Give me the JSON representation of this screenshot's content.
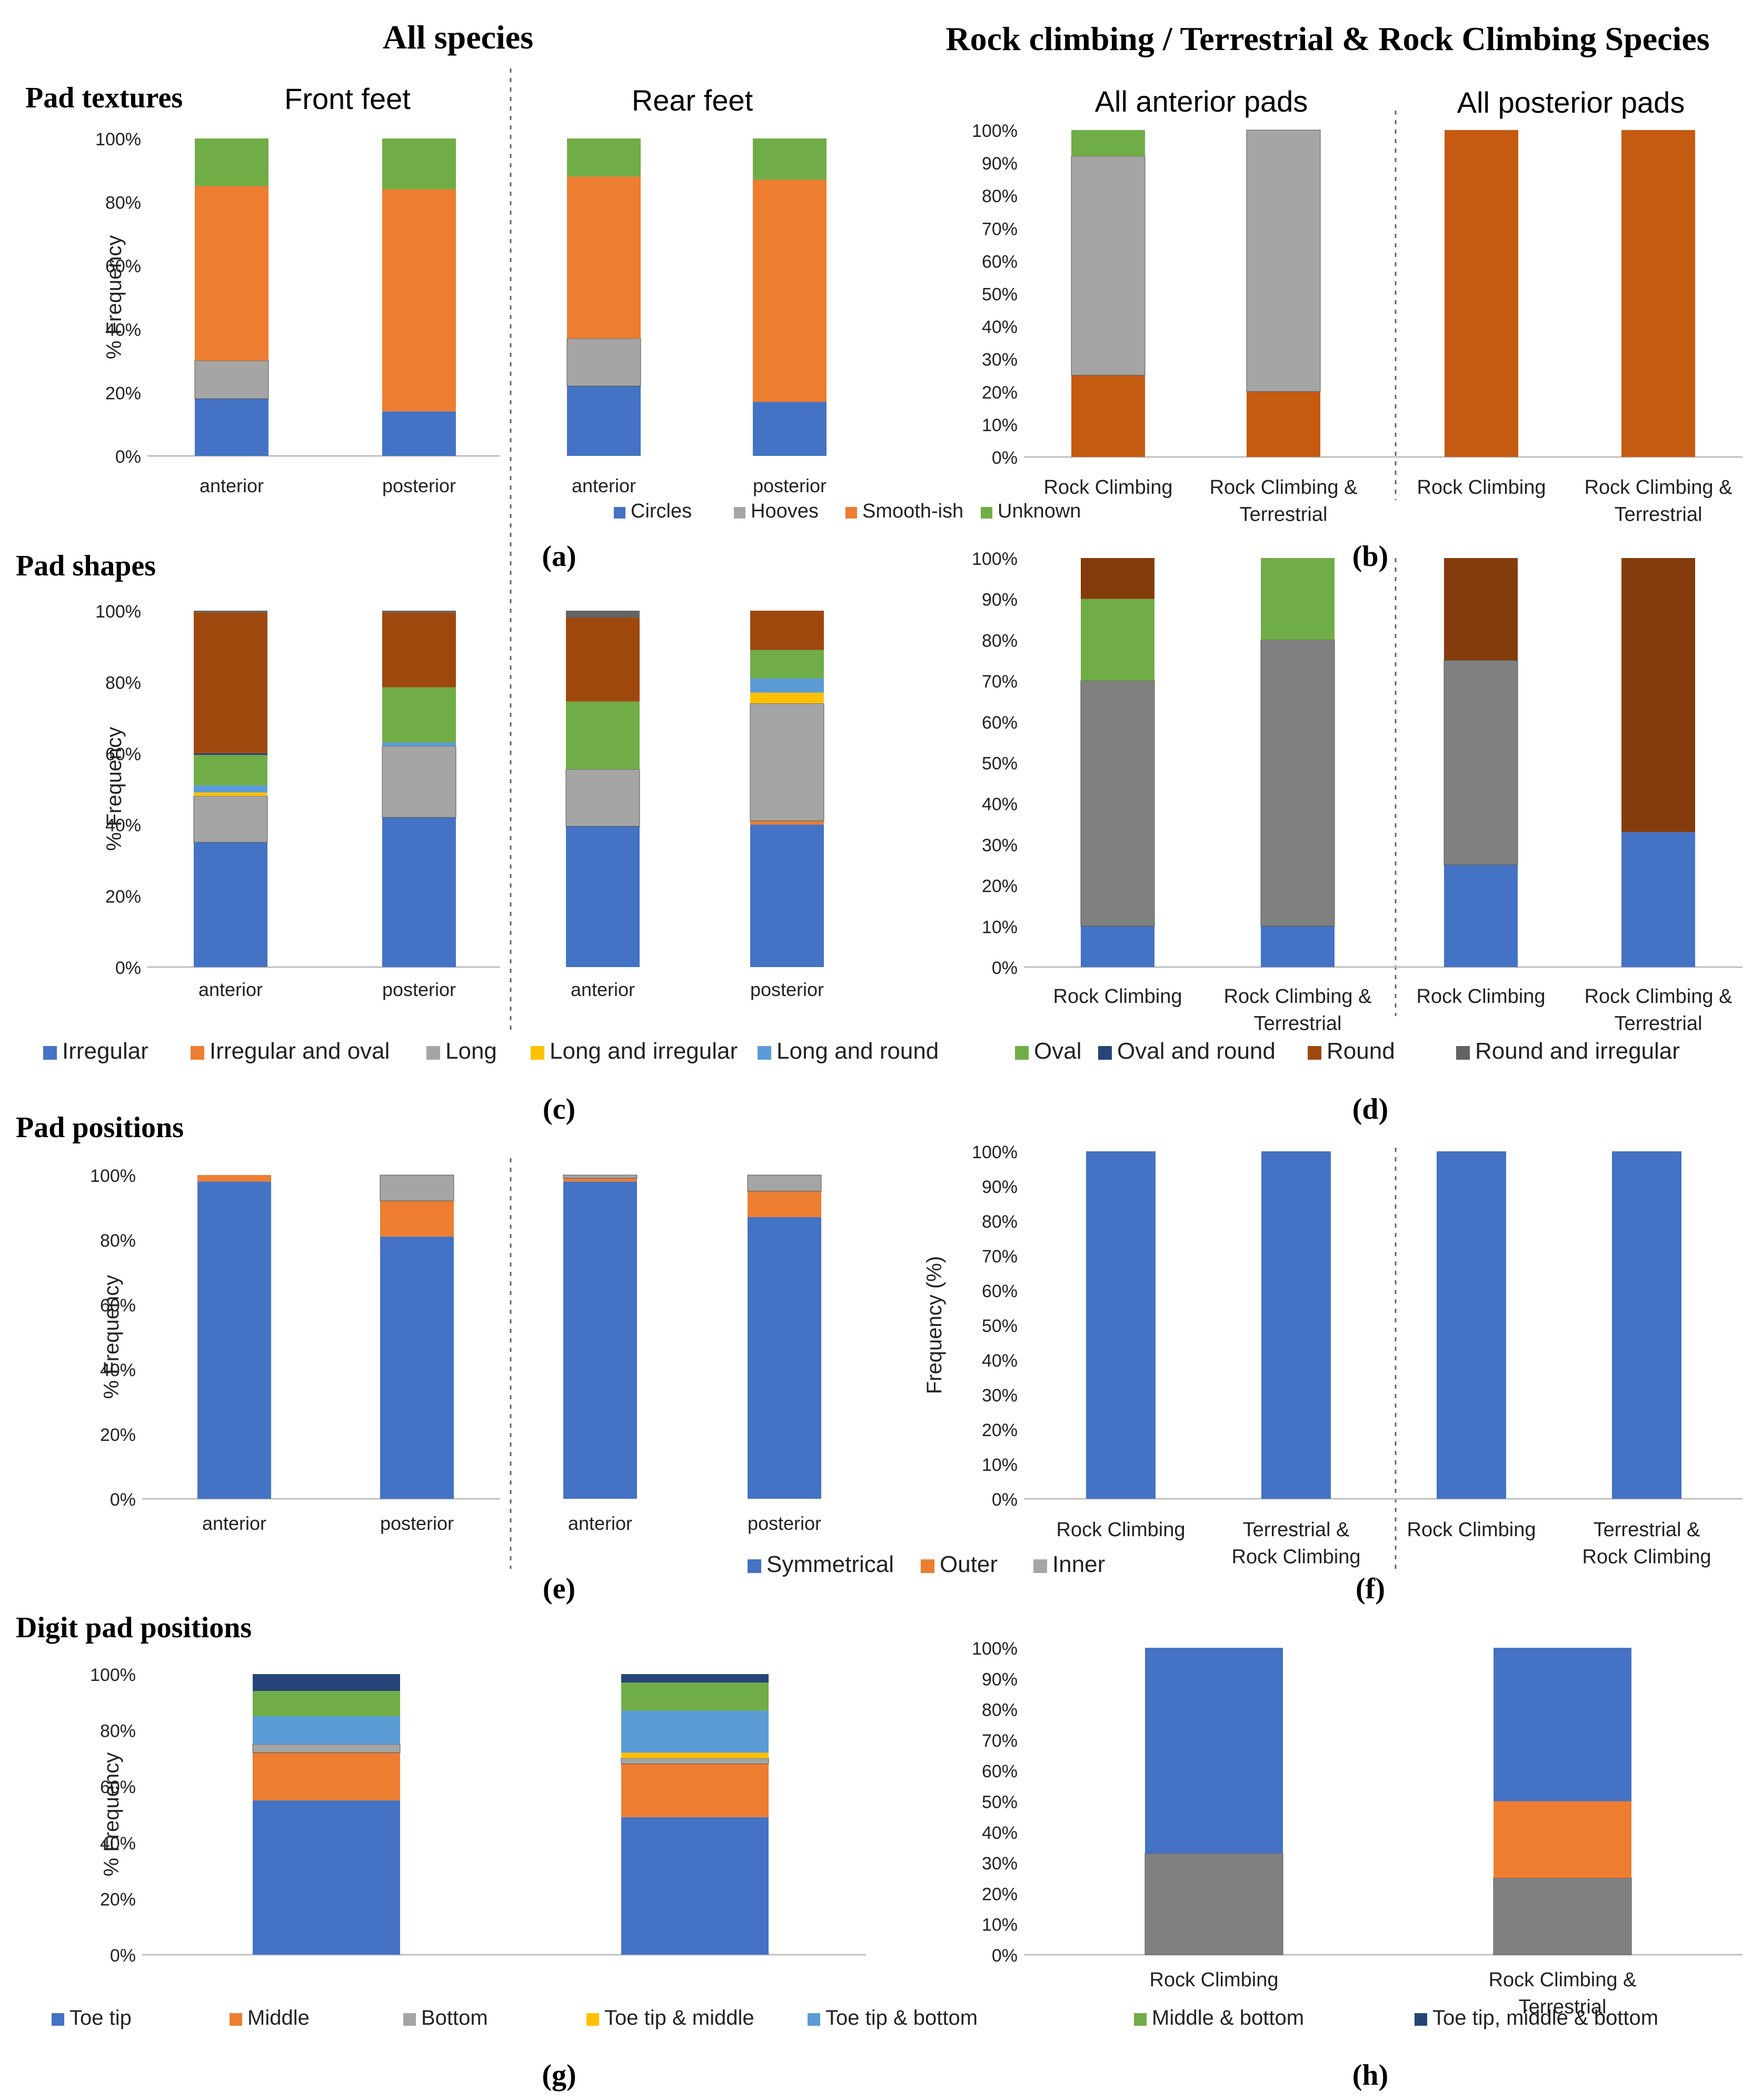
{
  "headings": {
    "all_species": "All species",
    "rock_species": "Rock climbing / Terrestrial & Rock Climbing Species",
    "row_textures": "Pad textures",
    "row_shapes": "Pad shapes",
    "row_positions": "Pad positions",
    "row_digit": "Digit pad positions",
    "front_feet": "Front feet",
    "rear_feet": "Rear feet",
    "anterior_pads": "All anterior pads",
    "posterior_pads": "All posterior pads"
  },
  "panel_labels": {
    "a": "(a)",
    "b": "(b)",
    "c": "(c)",
    "d": "(d)",
    "e": "(e)",
    "f": "(f)",
    "g": "(g)",
    "h": "(h)"
  },
  "legends": {
    "textures": [
      {
        "name": "Circles",
        "color": "#4472C4"
      },
      {
        "name": "Hooves",
        "color": "#A5A5A5"
      },
      {
        "name": "Smooth-ish",
        "color": "#ED7D31"
      },
      {
        "name": "Unknown",
        "color": "#70AD47"
      }
    ],
    "shapes": [
      {
        "name": "Irregular",
        "color": "#4472C4"
      },
      {
        "name": "Irregular and oval",
        "color": "#ED7D31"
      },
      {
        "name": "Long",
        "color": "#A5A5A5"
      },
      {
        "name": "Long and irregular",
        "color": "#FFC000"
      },
      {
        "name": "Long and round",
        "color": "#5B9BD5"
      },
      {
        "name": "Oval",
        "color": "#70AD47"
      },
      {
        "name": "Oval and round",
        "color": "#264478"
      },
      {
        "name": "Round",
        "color": "#9E480E"
      },
      {
        "name": "Round and irregular",
        "color": "#636363"
      }
    ],
    "positions": [
      {
        "name": "Symmetrical",
        "color": "#4472C4"
      },
      {
        "name": "Outer",
        "color": "#ED7D31"
      },
      {
        "name": "Inner",
        "color": "#A5A5A5"
      }
    ],
    "digit": [
      {
        "name": "Toe tip",
        "color": "#4472C4"
      },
      {
        "name": "Middle",
        "color": "#ED7D31"
      },
      {
        "name": "Bottom",
        "color": "#A5A5A5"
      },
      {
        "name": "Toe tip & middle",
        "color": "#FFC000"
      },
      {
        "name": "Toe tip & bottom",
        "color": "#5B9BD5"
      },
      {
        "name": "Middle & bottom",
        "color": "#70AD47"
      },
      {
        "name": "Toe tip, middle & bottom",
        "color": "#264478"
      }
    ]
  },
  "chart_data": [
    {
      "id": "a",
      "type": "bar",
      "stacked": true,
      "title": "Pad textures",
      "ylabel": "% Frequency",
      "ylim": [
        0,
        100
      ],
      "yticks": [
        "0%",
        "20%",
        "40%",
        "60%",
        "80%",
        "100%"
      ],
      "categories": [
        "anterior",
        "posterior",
        "anterior",
        "posterior"
      ],
      "series": [
        {
          "name": "Circles",
          "color": "#4472C4",
          "values": [
            18,
            14,
            22,
            17
          ]
        },
        {
          "name": "Hooves",
          "color": "#A5A5A5",
          "values": [
            12,
            0,
            15,
            0
          ]
        },
        {
          "name": "Smooth-ish",
          "color": "#ED7D31",
          "values": [
            55,
            70,
            51,
            70
          ]
        },
        {
          "name": "Unknown",
          "color": "#70AD47",
          "values": [
            15,
            16,
            12,
            13
          ]
        }
      ]
    },
    {
      "id": "b",
      "type": "bar",
      "stacked": true,
      "ylim": [
        0,
        100
      ],
      "yticks": [
        "0%",
        "10%",
        "20%",
        "30%",
        "40%",
        "50%",
        "60%",
        "70%",
        "80%",
        "90%",
        "100%"
      ],
      "categories": [
        "Rock Climbing",
        "Rock Climbing & Terrestrial",
        "Rock Climbing",
        "Rock Climbing & Terrestrial"
      ],
      "series": [
        {
          "name": "Smooth-ish",
          "color": "#C55A11",
          "values": [
            25,
            20,
            100,
            100
          ]
        },
        {
          "name": "Hooves",
          "color": "#A5A5A5",
          "values": [
            67,
            80,
            0,
            0
          ]
        },
        {
          "name": "Unknown",
          "color": "#70AD47",
          "values": [
            8,
            0,
            0,
            0
          ]
        }
      ]
    },
    {
      "id": "c",
      "type": "bar",
      "stacked": true,
      "title": "Pad shapes",
      "ylabel": "% Frequency",
      "ylim": [
        0,
        100
      ],
      "yticks": [
        "0%",
        "20%",
        "40%",
        "60%",
        "80%",
        "100%"
      ],
      "categories": [
        "anterior",
        "posterior",
        "anterior",
        "posterior"
      ],
      "series": [
        {
          "name": "Irregular",
          "color": "#4472C4",
          "values": [
            35,
            42,
            39.5,
            40
          ]
        },
        {
          "name": "Irregular and oval",
          "color": "#ED7D31",
          "values": [
            0,
            0,
            0,
            1
          ]
        },
        {
          "name": "Long",
          "color": "#A5A5A5",
          "values": [
            13,
            20,
            16,
            33
          ]
        },
        {
          "name": "Long and irregular",
          "color": "#FFC000",
          "values": [
            1,
            0,
            0,
            3
          ]
        },
        {
          "name": "Long and round",
          "color": "#5B9BD5",
          "values": [
            2,
            1,
            0,
            4
          ]
        },
        {
          "name": "Oval",
          "color": "#70AD47",
          "values": [
            8.5,
            15.5,
            19,
            8
          ]
        },
        {
          "name": "Oval and round",
          "color": "#264478",
          "values": [
            0.5,
            0,
            0,
            0
          ]
        },
        {
          "name": "Round",
          "color": "#9E480E",
          "values": [
            39.5,
            21,
            23.5,
            11
          ]
        },
        {
          "name": "Round and irregular",
          "color": "#636363",
          "values": [
            0.5,
            0.5,
            2,
            0
          ]
        }
      ]
    },
    {
      "id": "d",
      "type": "bar",
      "stacked": true,
      "ylim": [
        0,
        100
      ],
      "yticks": [
        "0%",
        "10%",
        "20%",
        "30%",
        "40%",
        "50%",
        "60%",
        "70%",
        "80%",
        "90%",
        "100%"
      ],
      "categories": [
        "Rock Climbing",
        "Rock Climbing & Terrestrial",
        "Rock Climbing",
        "Rock Climbing & Terrestrial"
      ],
      "series": [
        {
          "name": "Irregular",
          "color": "#4472C4",
          "values": [
            10,
            10,
            25,
            33
          ]
        },
        {
          "name": "Long",
          "color": "#808080",
          "values": [
            60,
            70,
            50,
            0
          ]
        },
        {
          "name": "Oval",
          "color": "#70AD47",
          "values": [
            20,
            20,
            0,
            0
          ]
        },
        {
          "name": "Round",
          "color": "#843C0C",
          "values": [
            10,
            0,
            25,
            67
          ]
        }
      ]
    },
    {
      "id": "e",
      "type": "bar",
      "stacked": true,
      "title": "Pad positions",
      "ylabel": "% Frequency",
      "ylim": [
        0,
        100
      ],
      "yticks": [
        "0%",
        "20%",
        "40%",
        "60%",
        "80%",
        "100%"
      ],
      "categories": [
        "anterior",
        "posterior",
        "anterior",
        "posterior"
      ],
      "series": [
        {
          "name": "Symmetrical",
          "color": "#4472C4",
          "values": [
            98,
            81,
            98,
            87
          ]
        },
        {
          "name": "Outer",
          "color": "#ED7D31",
          "values": [
            2,
            11,
            1,
            8
          ]
        },
        {
          "name": "Inner",
          "color": "#A5A5A5",
          "values": [
            0,
            8,
            1,
            5
          ]
        }
      ]
    },
    {
      "id": "f",
      "type": "bar",
      "stacked": true,
      "ylabel": "Frequency (%)",
      "ylim": [
        0,
        100
      ],
      "yticks": [
        "0%",
        "10%",
        "20%",
        "30%",
        "40%",
        "50%",
        "60%",
        "70%",
        "80%",
        "90%",
        "100%"
      ],
      "categories": [
        "Rock Climbing",
        "Terrestrial & Rock Climbing",
        "Rock Climbing",
        "Terrestrial & Rock Climbing"
      ],
      "series": [
        {
          "name": "Symmetrical",
          "color": "#4472C4",
          "values": [
            100,
            100,
            100,
            100
          ]
        }
      ]
    },
    {
      "id": "g",
      "type": "bar",
      "stacked": true,
      "title": "Digit pad positions",
      "ylabel": "% Frequency",
      "ylim": [
        0,
        100
      ],
      "yticks": [
        "0%",
        "20%",
        "40%",
        "60%",
        "80%",
        "100%"
      ],
      "categories": [
        "",
        ""
      ],
      "series": [
        {
          "name": "Toe tip",
          "color": "#4472C4",
          "values": [
            55,
            49
          ]
        },
        {
          "name": "Middle",
          "color": "#ED7D31",
          "values": [
            17,
            19
          ]
        },
        {
          "name": "Bottom",
          "color": "#A5A5A5",
          "values": [
            3,
            2
          ]
        },
        {
          "name": "Toe tip & middle",
          "color": "#FFC000",
          "values": [
            0,
            2
          ]
        },
        {
          "name": "Toe tip & bottom",
          "color": "#5B9BD5",
          "values": [
            10,
            15
          ]
        },
        {
          "name": "Middle & bottom",
          "color": "#70AD47",
          "values": [
            9,
            10
          ]
        },
        {
          "name": "Toe tip, middle & bottom",
          "color": "#264478",
          "values": [
            6,
            3
          ]
        }
      ]
    },
    {
      "id": "h",
      "type": "bar",
      "stacked": true,
      "ylim": [
        0,
        100
      ],
      "yticks": [
        "0%",
        "10%",
        "20%",
        "30%",
        "40%",
        "50%",
        "60%",
        "70%",
        "80%",
        "90%",
        "100%"
      ],
      "categories": [
        "Rock Climbing",
        "Rock Climbing & Terrestrial"
      ],
      "series": [
        {
          "name": "Long",
          "color": "#808080",
          "values": [
            33,
            25
          ]
        },
        {
          "name": "Middle",
          "color": "#ED7D31",
          "values": [
            0,
            25
          ]
        },
        {
          "name": "Toe tip",
          "color": "#4472C4",
          "values": [
            67,
            50
          ]
        }
      ]
    }
  ]
}
